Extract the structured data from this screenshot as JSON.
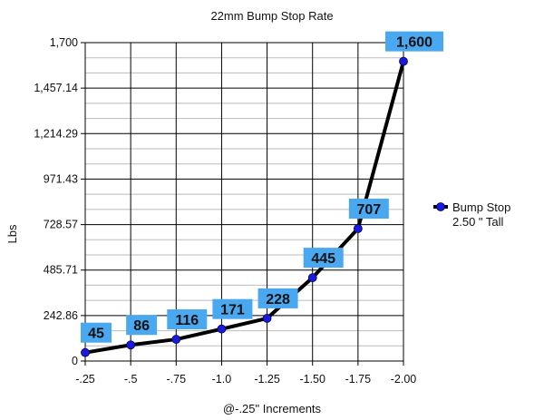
{
  "chart_data": {
    "type": "line",
    "title": "22mm Bump Stop Rate",
    "xlabel": "@-.25\" Increments",
    "ylabel": "Lbs",
    "categories": [
      "-.25",
      "-.5",
      "-.75",
      "-1.0",
      "-1.25",
      "-1.50",
      "-1.75",
      "-2.00"
    ],
    "series": [
      {
        "name": "Bump Stop 2.50 \" Tall",
        "legend_lines": [
          "Bump Stop",
          "2.50 \" Tall"
        ],
        "values": [
          45,
          86,
          116,
          171,
          228,
          445,
          707,
          1600
        ],
        "data_labels": [
          "45",
          "86",
          "116",
          "171",
          "228",
          "445",
          "707",
          "1,600"
        ]
      }
    ],
    "ylim": [
      0,
      1700
    ],
    "yticks": [
      0,
      242.86,
      485.71,
      728.57,
      971.43,
      1214.29,
      1457.14,
      1700
    ],
    "ytick_labels": [
      "0",
      "242.86",
      "485.71",
      "728.57",
      "971.43",
      "1,214.29",
      "1,457.14",
      "1,700"
    ],
    "grid": true,
    "legend_position": "right",
    "colors": {
      "line": "#000000",
      "marker": "#1a1adc",
      "label_box": "#4aa8f0",
      "grid": "#000000",
      "minor_grid": "#bbbbbb"
    }
  }
}
